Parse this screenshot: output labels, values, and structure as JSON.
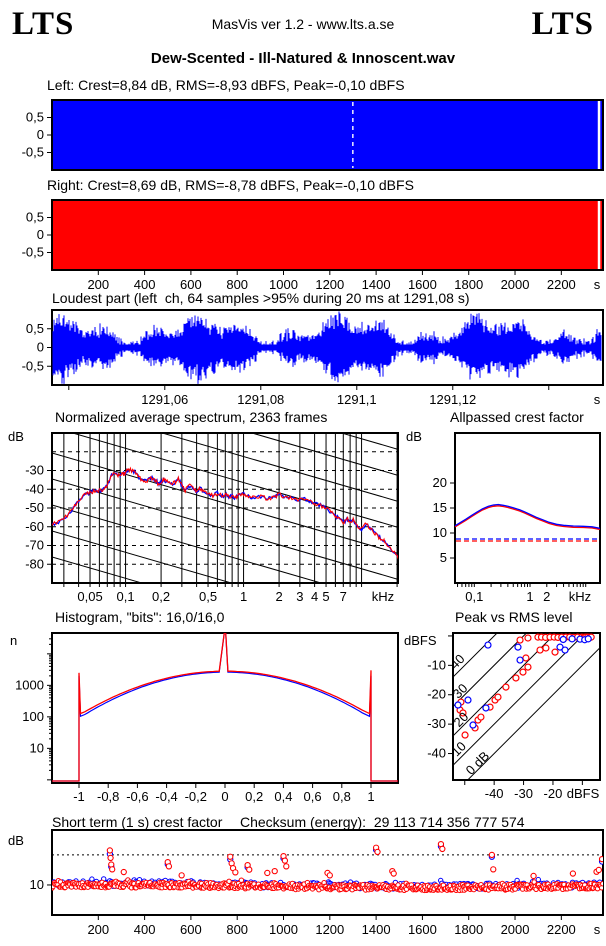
{
  "header": {
    "logo_left": "LTS",
    "logo_right": "LTS",
    "app_line": "MasVis ver 1.2 - www.lts.a.se",
    "title": "Dew-Scented - Ill-Natured & Innoscent.wav"
  },
  "colors": {
    "left_channel": "#0000ff",
    "right_channel": "#ff0000",
    "axis": "#000000",
    "marker_dash": "#ffffff"
  },
  "chart_data": [
    {
      "id": "wave_left",
      "type": "area",
      "info_line": "Left: Crest=8,84 dB, RMS=-8,93 dBFS, Peak=-0,10 dBFS",
      "crest": "8,84 dB",
      "rms": "-8,93 dBFS",
      "peak": "-0,10 dBFS",
      "y_tick_labels": [
        "0,5",
        "0",
        "-0,5"
      ],
      "y_tick_values": [
        0.5,
        0,
        -0.5
      ],
      "ylim": [
        -1,
        1
      ],
      "fill_solid": true,
      "marker_frac": 0.546,
      "gap_frac": 0.9905,
      "color": "#0000ff"
    },
    {
      "id": "wave_right",
      "type": "area",
      "info_line": "Right: Crest=8,69 dB, RMS=-8,78 dBFS, Peak=-0,10 dBFS",
      "crest": "8,69 dB",
      "rms": "-8,78 dBFS",
      "peak": "-0,10 dBFS",
      "y_tick_labels": [
        "0,5",
        "0",
        "-0,5"
      ],
      "y_tick_values": [
        0.5,
        0,
        -0.5
      ],
      "ylim": [
        -1,
        1
      ],
      "fill_solid": true,
      "gap_frac": 0.9905,
      "color": "#ff0000",
      "x_tick_labels": [
        "200",
        "400",
        "600",
        "800",
        "1000",
        "1200",
        "1400",
        "1600",
        "1800",
        "2000",
        "2200"
      ],
      "x_tick_values": [
        200,
        400,
        600,
        800,
        1000,
        1200,
        1400,
        1600,
        1800,
        2000,
        2200
      ],
      "x_range_s": [
        0,
        2380
      ],
      "x_unit": "s"
    },
    {
      "id": "loudest",
      "type": "waveform",
      "title": "Loudest part (left  ch, 64 samples >95% during 20 ms at 1291,08 s)",
      "y_tick_labels": [
        "0,5",
        "0",
        "-0,5"
      ],
      "y_tick_values": [
        0.5,
        0,
        -0.5
      ],
      "ylim": [
        -1,
        1
      ],
      "color": "#0000ff",
      "x_tick_values": [
        1291.04,
        1291.06,
        1291.08,
        1291.1,
        1291.12,
        1291.14
      ],
      "x_tick_labels": [
        "",
        "1291,06",
        "1291,08",
        "1291,1",
        "1291,12",
        ""
      ],
      "x_range_s": [
        1291.0365,
        1291.1513
      ],
      "x_unit": "s",
      "noise_seed": 7
    },
    {
      "id": "spectrum",
      "type": "line",
      "title": "Normalized average spectrum, 2363 frames",
      "ylabel": "dB",
      "y_tick_labels": [
        "-30",
        "-40",
        "-50",
        "-60",
        "-70",
        "-80"
      ],
      "y_tick_values": [
        -30,
        -40,
        -50,
        -60,
        -70,
        -80
      ],
      "ylim": [
        -90,
        -10
      ],
      "dashed_levels": [
        -20,
        -30,
        -40,
        -50,
        -60,
        -70,
        -80
      ],
      "x_tick_labels": [
        "0,05",
        "0,1",
        "0,2",
        "0,5",
        "1",
        "2",
        "3",
        "4",
        "5",
        "7"
      ],
      "x_tick_values": [
        0.05,
        0.1,
        0.2,
        0.5,
        1,
        2,
        3,
        4,
        5,
        7
      ],
      "x_unit": "kHz",
      "xlim_khz": [
        0.0238,
        20.5
      ],
      "grid_freqs": [
        0.03,
        0.04,
        0.05,
        0.06,
        0.07,
        0.08,
        0.09,
        0.1,
        0.2,
        0.3,
        0.4,
        0.5,
        0.6,
        0.7,
        0.8,
        0.9,
        1,
        2,
        3,
        4,
        5,
        6,
        7,
        8,
        9,
        10,
        20
      ],
      "series": [
        {
          "name": "left",
          "color": "#0000ff"
        },
        {
          "name": "right",
          "color": "#ff0000"
        }
      ],
      "points_khz_db": [
        [
          0.024,
          -58.5
        ],
        [
          0.028,
          -57
        ],
        [
          0.032,
          -54
        ],
        [
          0.036,
          -50
        ],
        [
          0.04,
          -46.5
        ],
        [
          0.045,
          -43
        ],
        [
          0.05,
          -41.5
        ],
        [
          0.055,
          -41
        ],
        [
          0.06,
          -40.5
        ],
        [
          0.065,
          -40
        ],
        [
          0.07,
          -38
        ],
        [
          0.075,
          -33
        ],
        [
          0.08,
          -31.5
        ],
        [
          0.085,
          -32.5
        ],
        [
          0.09,
          -33
        ],
        [
          0.095,
          -32
        ],
        [
          0.1,
          -31
        ],
        [
          0.105,
          -30
        ],
        [
          0.11,
          -29.8
        ],
        [
          0.12,
          -31
        ],
        [
          0.13,
          -33.5
        ],
        [
          0.14,
          -35.5
        ],
        [
          0.15,
          -36
        ],
        [
          0.16,
          -34.5
        ],
        [
          0.17,
          -34
        ],
        [
          0.18,
          -35.5
        ],
        [
          0.19,
          -37
        ],
        [
          0.2,
          -36
        ],
        [
          0.21,
          -35
        ],
        [
          0.22,
          -35.5
        ],
        [
          0.24,
          -37.5
        ],
        [
          0.26,
          -36.5
        ],
        [
          0.28,
          -34.5
        ],
        [
          0.3,
          -38
        ],
        [
          0.32,
          -40.5
        ],
        [
          0.35,
          -38
        ],
        [
          0.38,
          -40
        ],
        [
          0.4,
          -41
        ],
        [
          0.43,
          -39.5
        ],
        [
          0.46,
          -41
        ],
        [
          0.5,
          -42
        ],
        [
          0.55,
          -43.5
        ],
        [
          0.6,
          -42
        ],
        [
          0.65,
          -43.5
        ],
        [
          0.7,
          -43
        ],
        [
          0.75,
          -44
        ],
        [
          0.8,
          -43.5
        ],
        [
          0.85,
          -44.5
        ],
        [
          0.9,
          -43.5
        ],
        [
          1.0,
          -42.5
        ],
        [
          1.1,
          -44
        ],
        [
          1.2,
          -44.5
        ],
        [
          1.4,
          -44
        ],
        [
          1.6,
          -45
        ],
        [
          1.8,
          -44.5
        ],
        [
          2.0,
          -42.5
        ],
        [
          2.2,
          -44
        ],
        [
          2.5,
          -45
        ],
        [
          2.8,
          -45.5
        ],
        [
          3.2,
          -45
        ],
        [
          3.6,
          -46.5
        ],
        [
          4.0,
          -47.5
        ],
        [
          4.5,
          -48.5
        ],
        [
          5.0,
          -50.5
        ],
        [
          5.5,
          -52
        ],
        [
          6.0,
          -54
        ],
        [
          6.5,
          -56
        ],
        [
          7.0,
          -58
        ],
        [
          7.5,
          -55.5
        ],
        [
          8.0,
          -57.5
        ],
        [
          8.5,
          -56
        ],
        [
          9.0,
          -59
        ],
        [
          9.5,
          -60.5
        ],
        [
          10,
          -61
        ],
        [
          11,
          -58.5
        ],
        [
          12,
          -61.5
        ],
        [
          13,
          -63.5
        ],
        [
          14,
          -65.5
        ],
        [
          15,
          -67
        ],
        [
          16,
          -68.5
        ],
        [
          18,
          -72
        ],
        [
          20,
          -76
        ],
        [
          22,
          -81
        ]
      ],
      "slope_lines": {
        "present": true,
        "approx_db_per_octave": 6
      }
    },
    {
      "id": "allpassed",
      "type": "line",
      "title": "Allpassed crest factor",
      "ylabel": "dB",
      "y_tick_labels": [
        "5",
        "10",
        "15",
        "20"
      ],
      "y_tick_values": [
        5,
        10,
        15,
        20
      ],
      "ylim": [
        0,
        30
      ],
      "x_tick_labels": [
        "0,1",
        "1",
        "2"
      ],
      "x_tick_values": [
        0.1,
        1,
        2
      ],
      "x_unit": "kHz",
      "xlim_khz": [
        0.045,
        18
      ],
      "dashed_level_db": 8.6,
      "series": [
        {
          "name": "left",
          "color": "#0000ff",
          "offset": 0.25
        },
        {
          "name": "right",
          "color": "#ff0000",
          "offset": 0
        }
      ],
      "points_khz_db": [
        [
          0.045,
          11.2
        ],
        [
          0.055,
          11.8
        ],
        [
          0.07,
          12.5
        ],
        [
          0.09,
          13.3
        ],
        [
          0.11,
          13.9
        ],
        [
          0.14,
          14.6
        ],
        [
          0.18,
          15.1
        ],
        [
          0.22,
          15.35
        ],
        [
          0.27,
          15.45
        ],
        [
          0.33,
          15.3
        ],
        [
          0.4,
          15.1
        ],
        [
          0.5,
          14.8
        ],
        [
          0.65,
          14.4
        ],
        [
          0.8,
          14.0
        ],
        [
          1.0,
          13.5
        ],
        [
          1.3,
          12.9
        ],
        [
          1.7,
          12.4
        ],
        [
          2.2,
          11.9
        ],
        [
          3,
          11.5
        ],
        [
          4,
          11.3
        ],
        [
          6,
          11.15
        ],
        [
          9,
          11.1
        ],
        [
          13,
          11.0
        ],
        [
          18,
          10.7
        ]
      ]
    },
    {
      "id": "histogram",
      "type": "line",
      "title": "Histogram, \"bits\": 16,0/16,0",
      "ylabel": "n",
      "y_scale": "log",
      "y_tick_labels": [
        "10",
        "100",
        "1000"
      ],
      "y_tick_values": [
        10,
        100,
        1000
      ],
      "x_tick_labels": [
        "-1",
        "-0,8",
        "-0,6",
        "-0,4",
        "-0,2",
        "0",
        "0,2",
        "0,4",
        "0,6",
        "0,8",
        "1"
      ],
      "x_tick_values": [
        -1,
        -0.8,
        -0.6,
        -0.4,
        -0.2,
        0,
        0.2,
        0.4,
        0.6,
        0.8,
        1
      ],
      "xlim": [
        -1.18,
        1.18
      ],
      "arch": {
        "red_log10_center": 3.45,
        "red_log10_coeff": 1.4,
        "blue_log10_center": 3.42,
        "blue_log10_coeff": 1.46
      },
      "spikes": {
        "minus_one_n": 2500,
        "zero_n": "top",
        "plus_one_n": 3000,
        "blue_edge_n": 2000
      },
      "series": [
        {
          "name": "left",
          "color": "#0000ff"
        },
        {
          "name": "right",
          "color": "#ff0000"
        }
      ]
    },
    {
      "id": "peak_rms",
      "type": "scatter",
      "title": "Peak vs RMS level",
      "ylabel": "dBFS",
      "x_unit": "dBFS",
      "x_tick_labels": [
        "",
        "-40",
        "-30",
        "-20",
        ""
      ],
      "x_tick_values": [
        -50,
        -40,
        -30,
        -20,
        -10
      ],
      "y_tick_labels": [
        "",
        "-10",
        "-20",
        "-30",
        "-40"
      ],
      "y_tick_values": [
        0,
        -10,
        -20,
        -30,
        -40
      ],
      "xlim": [
        -54,
        -4
      ],
      "ylim": [
        -49,
        1
      ],
      "isoline_crest_db": [
        0,
        10,
        20,
        30,
        40
      ],
      "isoline_labels": [
        "0 dB",
        "10",
        "20",
        "30",
        "40"
      ],
      "points_rms_peak_ch": [
        [
          -25.1,
          -0.4,
          "r"
        ],
        [
          -23.9,
          -0.4,
          "r"
        ],
        [
          -22.5,
          -0.5,
          "r"
        ],
        [
          -21.0,
          -0.4,
          "r"
        ],
        [
          -19.6,
          -0.4,
          "r"
        ],
        [
          -18.3,
          -0.5,
          "r"
        ],
        [
          -17.0,
          -0.4,
          "r"
        ],
        [
          -15.6,
          -0.4,
          "r"
        ],
        [
          -14.3,
          -0.4,
          "r"
        ],
        [
          -12.9,
          -0.5,
          "r"
        ],
        [
          -11.6,
          -0.4,
          "r"
        ],
        [
          -10.2,
          -0.4,
          "r"
        ],
        [
          -9.5,
          -0.5,
          "r"
        ],
        [
          -8.9,
          -0.4,
          "r"
        ],
        [
          -8.2,
          -0.4,
          "r"
        ],
        [
          -7.5,
          -0.5,
          "r"
        ],
        [
          -7.0,
          -0.4,
          "r"
        ],
        [
          -16.5,
          -1.2,
          "b"
        ],
        [
          -13.5,
          -1.0,
          "b"
        ],
        [
          -10.8,
          -1.1,
          "b"
        ],
        [
          -9.2,
          -1.3,
          "b"
        ],
        [
          -8.0,
          -1.0,
          "b"
        ],
        [
          -31.2,
          -1.4,
          "r"
        ],
        [
          -28.5,
          -0.7,
          "r"
        ],
        [
          -24.4,
          -4.8,
          "r"
        ],
        [
          -22.4,
          -4.1,
          "r"
        ],
        [
          -19.3,
          -5.5,
          "r"
        ],
        [
          -29.2,
          -7.5,
          "r"
        ],
        [
          -28.5,
          -10.6,
          "r"
        ],
        [
          -42.1,
          -3.1,
          "b"
        ],
        [
          -31.9,
          -3.8,
          "b"
        ],
        [
          -17.6,
          -3.8,
          "b"
        ],
        [
          -15.9,
          -4.8,
          "b"
        ],
        [
          -31.2,
          -8.2,
          "b"
        ],
        [
          -30.2,
          -12.3,
          "r"
        ],
        [
          -32.6,
          -14.3,
          "r"
        ],
        [
          -36.0,
          -17.4,
          "r"
        ],
        [
          -39.7,
          -21.8,
          "r"
        ],
        [
          -38.7,
          -20.8,
          "r"
        ],
        [
          -41.4,
          -24.2,
          "r"
        ],
        [
          -45.5,
          -28.6,
          "r"
        ],
        [
          -44.5,
          -27.6,
          "r"
        ],
        [
          -46.5,
          -31.3,
          "r"
        ],
        [
          -49.9,
          -33.7,
          "r"
        ],
        [
          -51.3,
          -22.5,
          "r"
        ],
        [
          -51.6,
          -25.2,
          "r"
        ],
        [
          -50.6,
          -26.2,
          "r"
        ],
        [
          -42.8,
          -24.5,
          "b"
        ],
        [
          -47.2,
          -30.3,
          "b"
        ],
        [
          -52.3,
          -23.5,
          "b"
        ],
        [
          -48.9,
          -21.8,
          "b"
        ]
      ]
    },
    {
      "id": "shortterm_crest",
      "type": "scatter",
      "title": "Short term (1 s) crest factor",
      "checksum_line": "Checksum (energy):  29 113 714 356 777 574",
      "ylabel": "dB",
      "y_tick_labels": [
        "10"
      ],
      "y_tick_values": [
        10
      ],
      "ylim": [
        0,
        28.3
      ],
      "dotted_levels": [
        10,
        20
      ],
      "x_tick_labels": [
        "200",
        "400",
        "600",
        "800",
        "1000",
        "1200",
        "1400",
        "1600",
        "1800",
        "2000",
        "2200"
      ],
      "x_tick_values": [
        200,
        400,
        600,
        800,
        1000,
        1200,
        1400,
        1600,
        1800,
        2000,
        2200
      ],
      "x_range_s": [
        0,
        2380
      ],
      "x_unit": "s",
      "band": {
        "red_center_db": 9.55,
        "blue_center_db": 10.0,
        "spread_db": 1.0,
        "red_n": 650,
        "blue_n": 450,
        "seed": 11
      },
      "outliers_t_db_red": [
        [
          250,
          21.5
        ],
        [
          253,
          19
        ],
        [
          256,
          16.8
        ],
        [
          260,
          15.2
        ],
        [
          310,
          14.3
        ],
        [
          500,
          17.6
        ],
        [
          505,
          16.2
        ],
        [
          560,
          13.2
        ],
        [
          770,
          19.4
        ],
        [
          776,
          17.2
        ],
        [
          782,
          15.6
        ],
        [
          792,
          14.2
        ],
        [
          845,
          16.6
        ],
        [
          852,
          15.1
        ],
        [
          930,
          14.0
        ],
        [
          962,
          14.6
        ],
        [
          1000,
          19.6
        ],
        [
          1006,
          18.1
        ],
        [
          1012,
          16.2
        ],
        [
          1190,
          14.0
        ],
        [
          1200,
          13.2
        ],
        [
          1400,
          22.4
        ],
        [
          1406,
          21.0
        ],
        [
          1470,
          14.6
        ],
        [
          1476,
          13.8
        ],
        [
          1680,
          23.6
        ],
        [
          1686,
          22.0
        ],
        [
          1900,
          20.0
        ],
        [
          1906,
          15.2
        ],
        [
          2080,
          13.0
        ],
        [
          2250,
          13.8
        ],
        [
          2352,
          14.4
        ],
        [
          2362,
          15.0
        ],
        [
          2376,
          18.6
        ]
      ],
      "outliers_t_db_blue": [
        [
          250,
          20.3
        ],
        [
          500,
          16.9
        ],
        [
          770,
          18.5
        ],
        [
          845,
          15.9
        ],
        [
          256,
          16.1
        ],
        [
          1000,
          18.9
        ],
        [
          1400,
          21.7
        ],
        [
          1680,
          22.9
        ],
        [
          1900,
          19.4
        ],
        [
          2376,
          17.8
        ]
      ]
    }
  ]
}
